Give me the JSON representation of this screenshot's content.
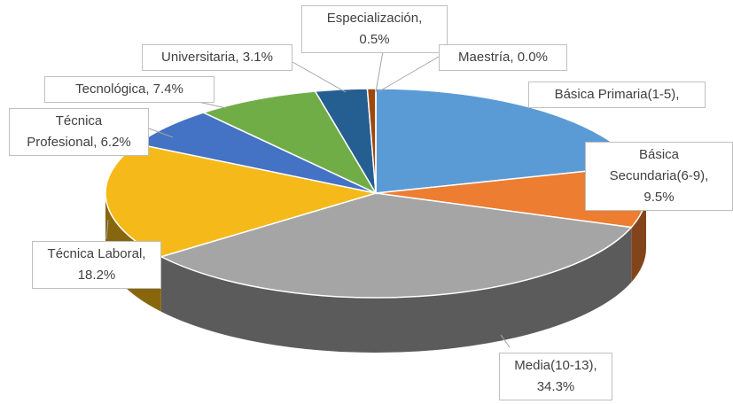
{
  "chart_data": {
    "type": "pie3d",
    "values": [
      20.8,
      9.5,
      34.3,
      18.2,
      6.2,
      7.4,
      3.1,
      0.5,
      0.0
    ],
    "value_labels": [
      "Básica Primaria(1-5),",
      "Básica\nSecundaria(6-9),\n9.5%",
      "Media(10-13),\n34.3%",
      "Técnica Laboral,\n18.2%",
      "Técnica\nProfesional, 6.2%",
      "Tecnológica, 7.4%",
      "Universitaria, 3.1%",
      "Especialización,\n0.5%",
      "Maestría, 0.0%"
    ],
    "colors": [
      "#5b9bd5",
      "#ed7d31",
      "#a5a5a5",
      "#f5b91a",
      "#4472c4",
      "#70ad47",
      "#255e91",
      "#9e480e",
      "#636363"
    ]
  }
}
